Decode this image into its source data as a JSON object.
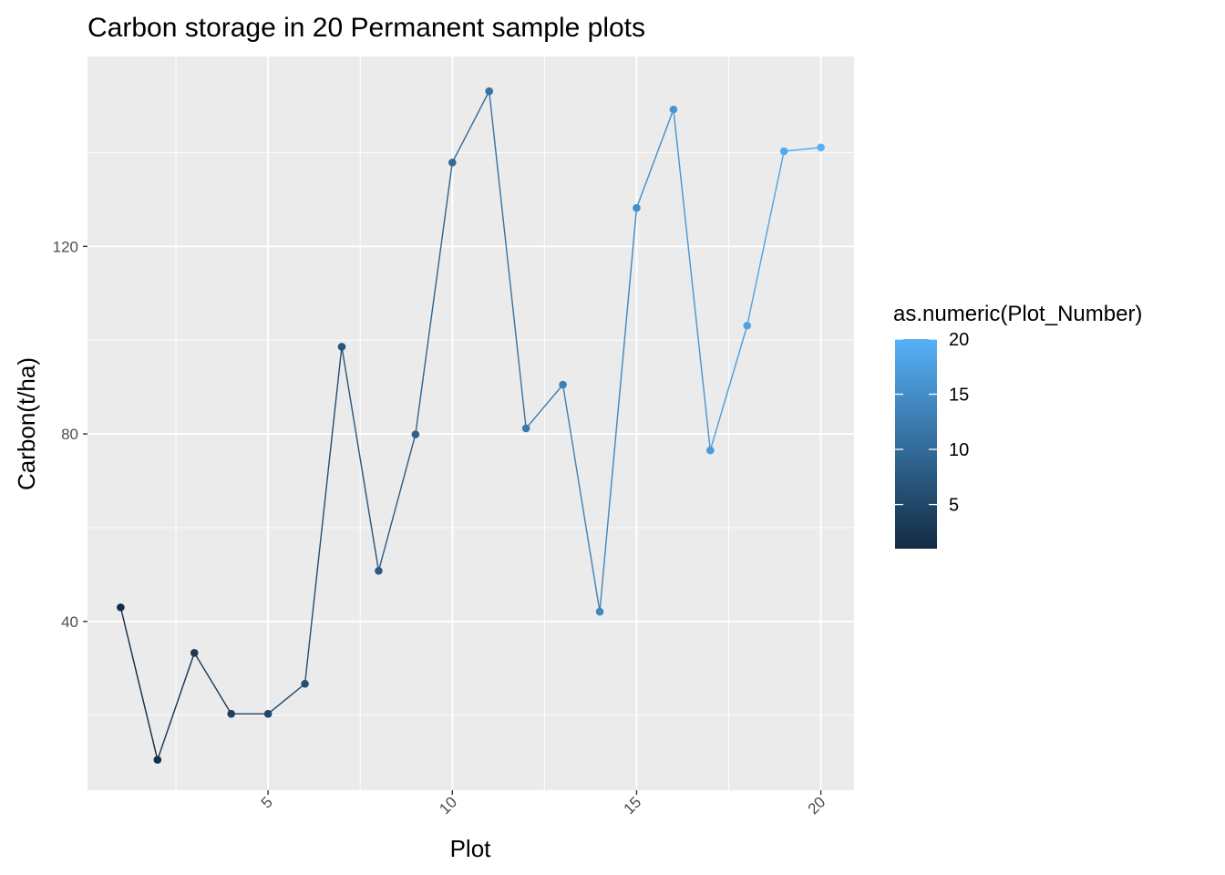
{
  "chart_data": {
    "type": "line",
    "title": "Carbon storage in 20 Permanent sample plots",
    "xlabel": "Plot",
    "ylabel": "Carbon(t/ha)",
    "xlim": [
      0.1,
      20.9
    ],
    "ylim": [
      4,
      160.5
    ],
    "x_ticks": [
      5,
      10,
      15,
      20
    ],
    "x_tick_labels": [
      "5",
      "10",
      "15",
      "20"
    ],
    "x_minor": [
      2.5,
      7.5,
      12.5,
      17.5
    ],
    "y_ticks": [
      40,
      80,
      120
    ],
    "y_tick_labels": [
      "40",
      "80",
      "120"
    ],
    "y_minor": [
      20,
      60,
      100,
      140
    ],
    "grid": true,
    "legend": {
      "title": "as.numeric(Plot_Number)",
      "position": "right",
      "type": "colorbar",
      "range": [
        1,
        20
      ],
      "ticks": [
        5,
        10,
        15,
        20
      ],
      "tick_labels": [
        "5",
        "10",
        "15",
        "20"
      ]
    },
    "colors": {
      "low": "#132b43",
      "high": "#56b1f7",
      "panel": "#ebebeb",
      "grid": "#ffffff"
    },
    "x": [
      1,
      2,
      3,
      4,
      5,
      6,
      7,
      8,
      9,
      10,
      11,
      12,
      13,
      14,
      15,
      16,
      17,
      18,
      19,
      20
    ],
    "values": [
      43,
      10.5,
      33.3,
      20.3,
      20.3,
      26.7,
      98.6,
      50.8,
      79.9,
      137.9,
      153.1,
      81.2,
      90.5,
      42.1,
      128.2,
      149.2,
      76.5,
      103.1,
      140.3,
      141.1
    ]
  }
}
